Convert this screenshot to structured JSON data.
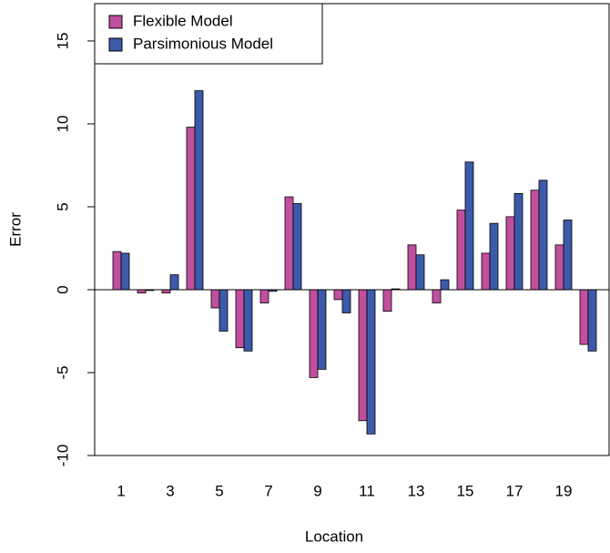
{
  "chart_data": {
    "type": "bar",
    "x_label": "Location",
    "y_label": "Error",
    "categories": [
      "1",
      null,
      "3",
      null,
      "5",
      null,
      "7",
      null,
      "9",
      null,
      "11",
      null,
      "13",
      null,
      "15",
      null,
      "17",
      null,
      "19",
      null
    ],
    "series": [
      {
        "name": "Flexible Model",
        "color": "#c04f9e",
        "values": [
          2.3,
          -0.2,
          -0.2,
          9.8,
          -1.1,
          -3.5,
          -0.8,
          5.6,
          -5.3,
          -0.6,
          -7.9,
          -1.3,
          2.7,
          -0.8,
          4.8,
          2.2,
          4.4,
          6.0,
          2.7,
          -3.3
        ]
      },
      {
        "name": "Parsimonious Model",
        "color": "#3d5aa9",
        "values": [
          2.2,
          -0.05,
          0.9,
          12.0,
          -2.5,
          -3.7,
          -0.1,
          5.2,
          -4.8,
          -1.4,
          -8.7,
          0.05,
          2.1,
          0.6,
          7.7,
          4.0,
          5.8,
          6.6,
          4.2,
          -3.7
        ]
      }
    ],
    "ylim": [
      -10,
      17.25
    ],
    "yticks": [
      -10,
      -5,
      0,
      5,
      10,
      15
    ],
    "legend": "top-left"
  }
}
